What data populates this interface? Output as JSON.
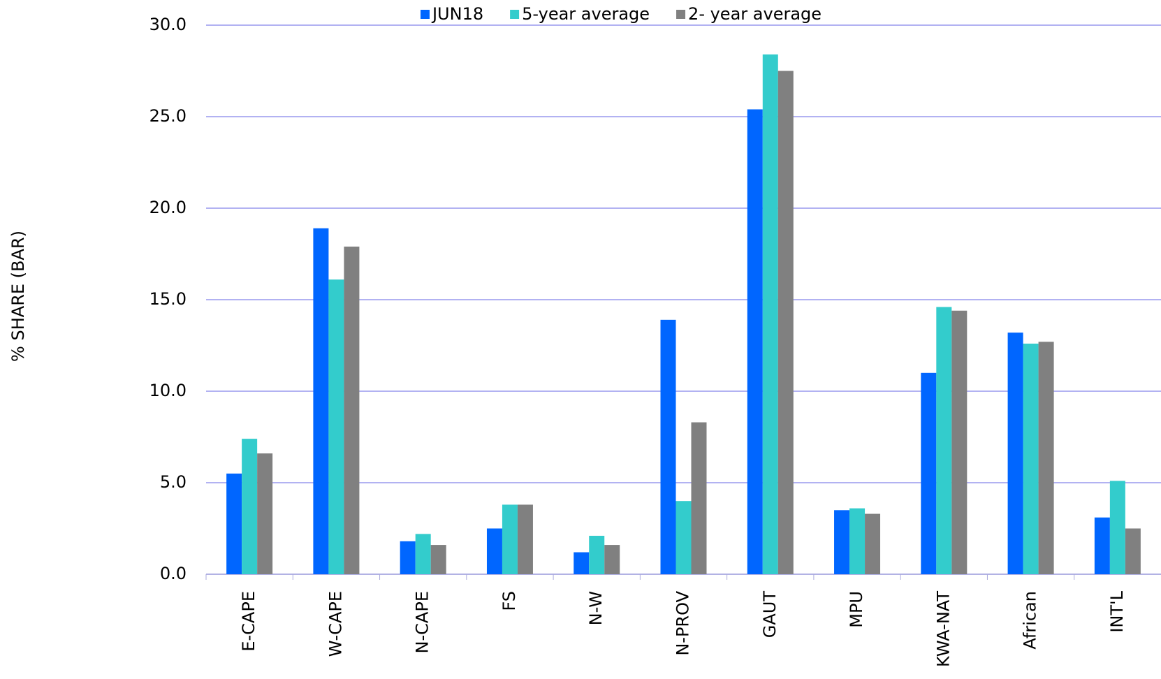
{
  "chart_data": {
    "type": "bar",
    "y_label": "% SHARE (BAR)",
    "categories": [
      "E-CAPE",
      "W-CAPE",
      "N-CAPE",
      "FS",
      "N-W",
      "N-PROV",
      "GAUT",
      "MPU",
      "KWA-NAT",
      "African",
      "INT'L"
    ],
    "series": [
      {
        "name": "JUN18",
        "color": "#0066ff",
        "values": [
          5.5,
          18.9,
          1.8,
          2.5,
          1.2,
          13.9,
          25.4,
          3.5,
          11.0,
          13.2,
          3.1
        ]
      },
      {
        "name": "5-year average",
        "color": "#33cccc",
        "values": [
          7.4,
          16.1,
          2.2,
          3.8,
          2.1,
          4.0,
          28.4,
          3.6,
          14.6,
          12.6,
          5.1
        ]
      },
      {
        "name": "2- year average",
        "color": "#808080",
        "values": [
          6.6,
          17.9,
          1.6,
          3.8,
          1.6,
          8.3,
          27.5,
          3.3,
          14.4,
          12.7,
          2.5
        ]
      }
    ],
    "ylim": [
      0,
      30
    ],
    "yticks": [
      {
        "value": 0,
        "label": "0.0"
      },
      {
        "value": 5,
        "label": "5.0"
      },
      {
        "value": 10,
        "label": "10.0"
      },
      {
        "value": 15,
        "label": "15.0"
      },
      {
        "value": 20,
        "label": "20.0"
      },
      {
        "value": 25,
        "label": "25.0"
      },
      {
        "value": 30,
        "label": "30.0"
      }
    ],
    "grid": true,
    "legend": "top"
  }
}
